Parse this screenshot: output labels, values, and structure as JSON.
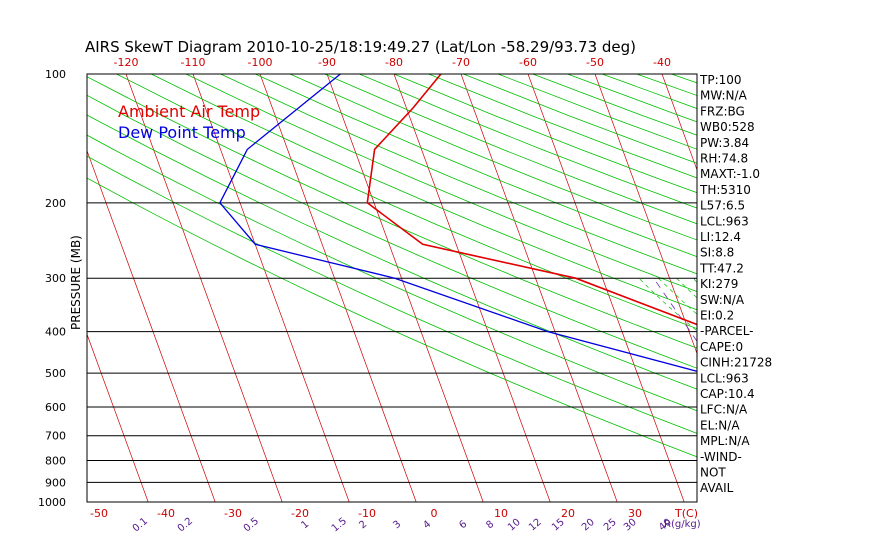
{
  "chart_data": {
    "type": "line",
    "title": "AIRS SkewT Diagram 2010-10-25/18:19:49.27 (Lat/Lon -58.29/93.73 deg)",
    "ylabel": "PRESSURE (MB)",
    "xlabel": "T(C)",
    "mixing_ratio_label": "R(g/kg)",
    "pressure_ticks": [
      100,
      200,
      300,
      400,
      500,
      600,
      700,
      800,
      900,
      1000
    ],
    "top_temp_ticks": [
      -120,
      -110,
      -100,
      -90,
      -80,
      -70,
      -60,
      -50,
      -40
    ],
    "bottom_temp_ticks": [
      -50,
      -40,
      -30,
      -20,
      -10,
      0,
      10,
      20,
      30
    ],
    "mixing_ratio_ticks": [
      "0.1",
      "0.2",
      "0.5",
      "1",
      "1.5",
      "2",
      "3",
      "4",
      "6",
      "8",
      "10",
      "12",
      "15",
      "20",
      "25",
      "30",
      "40"
    ],
    "legend": [
      {
        "label": "Ambient Air Temp",
        "color": "#e00000"
      },
      {
        "label": "Dew Point Temp",
        "color": "#0000e0"
      }
    ],
    "series": [
      {
        "name": "Ambient Air Temp",
        "color": "#e00000",
        "points": [
          [
            100,
            -73
          ],
          [
            120,
            -79
          ],
          [
            150,
            -87
          ],
          [
            200,
            -91
          ],
          [
            250,
            -85
          ],
          [
            300,
            -64
          ],
          [
            400,
            -46
          ],
          [
            500,
            -33
          ],
          [
            600,
            -24
          ],
          [
            700,
            -17
          ],
          [
            800,
            -12
          ],
          [
            900,
            -8
          ],
          [
            950,
            -8
          ]
        ]
      },
      {
        "name": "Dew Point Temp",
        "color": "#0000e0",
        "points": [
          [
            100,
            -88
          ],
          [
            150,
            -106
          ],
          [
            200,
            -113
          ],
          [
            250,
            -110
          ],
          [
            300,
            -91
          ],
          [
            400,
            -71
          ],
          [
            500,
            -50
          ],
          [
            600,
            -37
          ],
          [
            650,
            -33
          ],
          [
            700,
            -25
          ],
          [
            800,
            -18
          ],
          [
            900,
            -13
          ],
          [
            950,
            -11
          ]
        ]
      }
    ],
    "parameters": [
      "TP:100",
      "MW:N/A",
      "FRZ:BG",
      "WB0:528",
      "PW:3.84",
      "RH:74.8",
      "MAXT:-1.0",
      "TH:5310",
      "L57:6.5",
      "LCL:963",
      "LI:12.4",
      "SI:8.8",
      "TT:47.2",
      "KI:279",
      "SW:N/A",
      "EI:0.2",
      "-PARCEL-",
      "CAPE:0",
      "CINH:21728",
      "LCL:963",
      "CAP:10.4",
      "LFC:N/A",
      "EL:N/A",
      "MPL:N/A",
      "-WIND-",
      "NOT",
      "AVAIL"
    ],
    "grid": true
  }
}
